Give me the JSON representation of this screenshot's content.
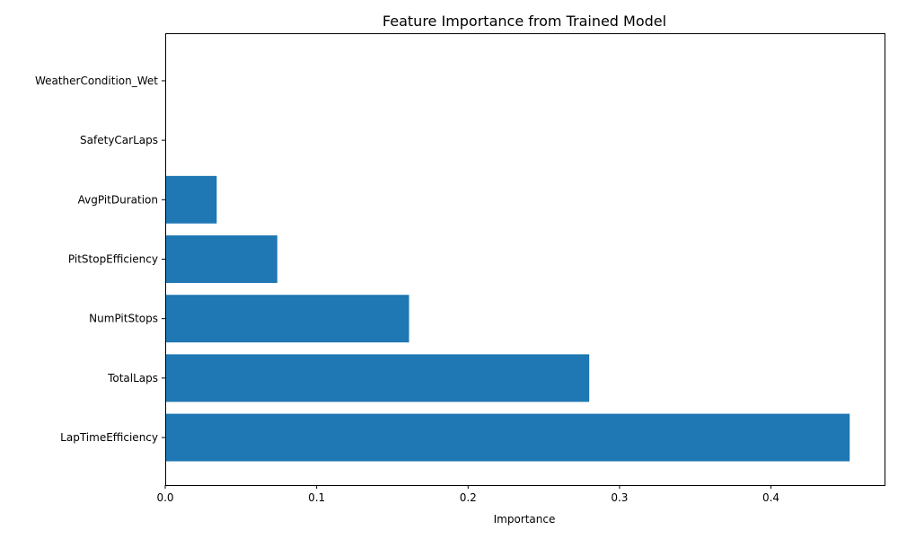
{
  "chart_data": {
    "type": "bar",
    "orientation": "horizontal",
    "title": "Feature Importance from Trained Model",
    "xlabel": "Importance",
    "ylabel": "",
    "categories": [
      "LapTimeEfficiency",
      "TotalLaps",
      "NumPitStops",
      "PitStopEfficiency",
      "AvgPitDuration",
      "SafetyCarLaps",
      "WeatherCondition_Wet"
    ],
    "values": [
      0.452,
      0.28,
      0.161,
      0.074,
      0.034,
      0.0,
      0.0
    ],
    "xlim": [
      0,
      0.475
    ],
    "xticks": [
      0.0,
      0.1,
      0.2,
      0.3,
      0.4
    ],
    "xtick_labels": [
      "0.0",
      "0.1",
      "0.2",
      "0.3",
      "0.4"
    ],
    "bar_color": "#1f77b4",
    "grid": false,
    "legend": "none"
  }
}
